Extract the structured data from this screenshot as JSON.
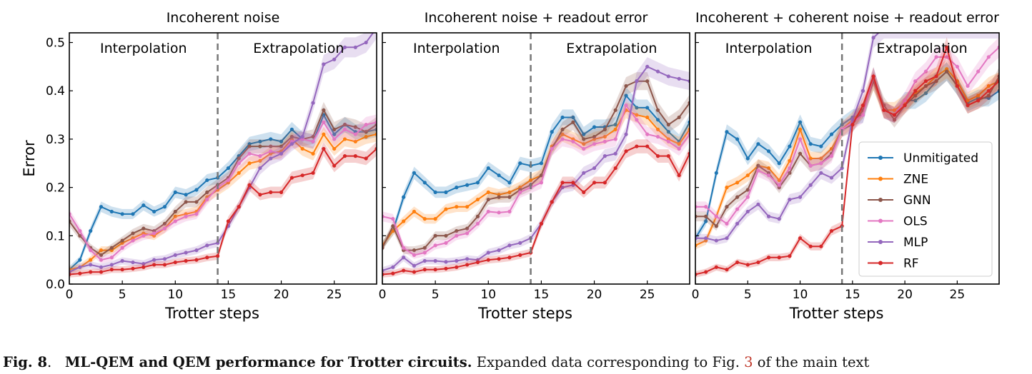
{
  "caption": {
    "fig_label": "Fig. 8",
    "title": "ML-QEM and QEM performance for Trotter circuits.",
    "text_before_ref": "Expanded data corresponding to Fig.",
    "ref": "3",
    "text_after_ref": "of the main text"
  },
  "colors": {
    "Unmitigated": "#1f77b4",
    "ZNE": "#ff7f0e",
    "GNN": "#8c564b",
    "OLS": "#e377c2",
    "MLP": "#9467bd",
    "RF": "#d62728"
  },
  "chart_data": [
    {
      "type": "line",
      "title": "Incoherent noise",
      "xlabel": "Trotter steps",
      "ylabel": "Error",
      "xlim": [
        0,
        29
      ],
      "ylim": [
        0,
        0.52
      ],
      "xticks": [
        0,
        5,
        10,
        15,
        20,
        25
      ],
      "yticks": [
        0.0,
        0.1,
        0.2,
        0.3,
        0.4,
        0.5
      ],
      "ytick_labels": [
        "0.0",
        "0.1",
        "0.2",
        "0.3",
        "0.4",
        "0.5"
      ],
      "divider_x": 14,
      "region_labels": [
        "Interpolation",
        "Extrapolation"
      ],
      "legend": false,
      "x": [
        0,
        1,
        2,
        3,
        4,
        5,
        6,
        7,
        8,
        9,
        10,
        11,
        12,
        13,
        14,
        15,
        16,
        17,
        18,
        19,
        20,
        21,
        22,
        23,
        24,
        25,
        26,
        27,
        28,
        29
      ],
      "series": [
        {
          "name": "Unmitigated",
          "values": [
            0.03,
            0.05,
            0.11,
            0.16,
            0.15,
            0.145,
            0.145,
            0.163,
            0.15,
            0.16,
            0.19,
            0.185,
            0.195,
            0.215,
            0.22,
            0.24,
            0.265,
            0.29,
            0.295,
            0.3,
            0.295,
            0.32,
            0.3,
            0.295,
            0.35,
            0.31,
            0.33,
            0.315,
            0.315,
            0.32
          ]
        },
        {
          "name": "ZNE",
          "values": [
            0.03,
            0.035,
            0.05,
            0.07,
            0.07,
            0.085,
            0.095,
            0.105,
            0.1,
            0.115,
            0.14,
            0.145,
            0.15,
            0.18,
            0.195,
            0.21,
            0.23,
            0.25,
            0.255,
            0.27,
            0.275,
            0.3,
            0.28,
            0.27,
            0.31,
            0.28,
            0.3,
            0.295,
            0.305,
            0.31
          ]
        },
        {
          "name": "GNN",
          "values": [
            0.13,
            0.1,
            0.075,
            0.06,
            0.075,
            0.09,
            0.105,
            0.115,
            0.11,
            0.125,
            0.15,
            0.17,
            0.17,
            0.19,
            0.205,
            0.22,
            0.26,
            0.285,
            0.285,
            0.285,
            0.285,
            0.305,
            0.3,
            0.305,
            0.36,
            0.32,
            0.33,
            0.325,
            0.315,
            0.33
          ]
        },
        {
          "name": "OLS",
          "values": [
            0.145,
            0.11,
            0.07,
            0.05,
            0.055,
            0.075,
            0.09,
            0.1,
            0.105,
            0.115,
            0.13,
            0.14,
            0.145,
            0.175,
            0.2,
            0.215,
            0.25,
            0.27,
            0.265,
            0.275,
            0.27,
            0.295,
            0.3,
            0.295,
            0.335,
            0.3,
            0.32,
            0.31,
            0.33,
            0.335
          ]
        },
        {
          "name": "MLP",
          "values": [
            0.025,
            0.035,
            0.04,
            0.035,
            0.04,
            0.048,
            0.045,
            0.042,
            0.05,
            0.052,
            0.06,
            0.065,
            0.07,
            0.08,
            0.085,
            0.12,
            0.16,
            0.2,
            0.24,
            0.26,
            0.27,
            0.29,
            0.305,
            0.375,
            0.455,
            0.465,
            0.49,
            0.49,
            0.5,
            0.53
          ]
        },
        {
          "name": "RF",
          "values": [
            0.02,
            0.022,
            0.025,
            0.025,
            0.03,
            0.03,
            0.032,
            0.035,
            0.04,
            0.04,
            0.045,
            0.048,
            0.05,
            0.055,
            0.058,
            0.13,
            0.16,
            0.205,
            0.185,
            0.19,
            0.19,
            0.22,
            0.225,
            0.23,
            0.28,
            0.245,
            0.265,
            0.265,
            0.26,
            0.28
          ]
        }
      ]
    },
    {
      "type": "line",
      "title": "Incoherent noise + readout error",
      "xlabel": "Trotter steps",
      "ylabel": "",
      "xlim": [
        0,
        29
      ],
      "ylim": [
        0,
        0.52
      ],
      "xticks": [
        0,
        5,
        10,
        15,
        20,
        25
      ],
      "yticks": [],
      "ytick_labels": [],
      "divider_x": 14,
      "region_labels": [
        "Interpolation",
        "Extrapolation"
      ],
      "legend": false,
      "x": [
        0,
        1,
        2,
        3,
        4,
        5,
        6,
        7,
        8,
        9,
        10,
        11,
        12,
        13,
        14,
        15,
        16,
        17,
        18,
        19,
        20,
        21,
        22,
        23,
        24,
        25,
        26,
        27,
        28,
        29
      ],
      "series": [
        {
          "name": "Unmitigated",
          "values": [
            0.08,
            0.11,
            0.18,
            0.23,
            0.21,
            0.19,
            0.19,
            0.2,
            0.205,
            0.21,
            0.24,
            0.225,
            0.21,
            0.25,
            0.245,
            0.25,
            0.315,
            0.345,
            0.345,
            0.31,
            0.325,
            0.325,
            0.33,
            0.39,
            0.365,
            0.365,
            0.34,
            0.315,
            0.295,
            0.335
          ]
        },
        {
          "name": "ZNE",
          "values": [
            0.08,
            0.11,
            0.13,
            0.15,
            0.135,
            0.135,
            0.155,
            0.16,
            0.16,
            0.175,
            0.19,
            0.185,
            0.19,
            0.2,
            0.215,
            0.225,
            0.285,
            0.31,
            0.3,
            0.29,
            0.3,
            0.305,
            0.32,
            0.36,
            0.35,
            0.345,
            0.32,
            0.3,
            0.29,
            0.32
          ]
        },
        {
          "name": "GNN",
          "values": [
            0.075,
            0.12,
            0.07,
            0.07,
            0.075,
            0.1,
            0.1,
            0.11,
            0.115,
            0.14,
            0.175,
            0.18,
            0.18,
            0.195,
            0.205,
            0.225,
            0.28,
            0.32,
            0.335,
            0.3,
            0.305,
            0.32,
            0.36,
            0.41,
            0.42,
            0.42,
            0.36,
            0.33,
            0.345,
            0.375
          ]
        },
        {
          "name": "OLS",
          "values": [
            0.14,
            0.135,
            0.075,
            0.06,
            0.065,
            0.08,
            0.085,
            0.1,
            0.105,
            0.125,
            0.15,
            0.148,
            0.15,
            0.19,
            0.2,
            0.21,
            0.28,
            0.3,
            0.295,
            0.28,
            0.29,
            0.295,
            0.3,
            0.37,
            0.34,
            0.31,
            0.305,
            0.295,
            0.28,
            0.31
          ]
        },
        {
          "name": "MLP",
          "values": [
            0.028,
            0.035,
            0.055,
            0.038,
            0.048,
            0.048,
            0.046,
            0.048,
            0.052,
            0.05,
            0.065,
            0.07,
            0.08,
            0.085,
            0.095,
            0.125,
            0.17,
            0.2,
            0.205,
            0.23,
            0.24,
            0.265,
            0.27,
            0.31,
            0.42,
            0.45,
            0.44,
            0.43,
            0.425,
            0.42
          ]
        },
        {
          "name": "RF",
          "values": [
            0.02,
            0.022,
            0.028,
            0.025,
            0.03,
            0.03,
            0.032,
            0.035,
            0.04,
            0.045,
            0.05,
            0.052,
            0.055,
            0.06,
            0.065,
            0.125,
            0.17,
            0.21,
            0.21,
            0.19,
            0.21,
            0.21,
            0.24,
            0.275,
            0.285,
            0.285,
            0.265,
            0.265,
            0.225,
            0.27
          ]
        }
      ]
    },
    {
      "type": "line",
      "title": "Incoherent + coherent noise + readout error",
      "xlabel": "Trotter steps",
      "ylabel": "",
      "xlim": [
        0,
        29
      ],
      "ylim": [
        0,
        0.52
      ],
      "xticks": [
        0,
        5,
        10,
        15,
        20,
        25
      ],
      "yticks": [],
      "ytick_labels": [],
      "divider_x": 14,
      "region_labels": [
        "Interpolation",
        "Extrapolation"
      ],
      "legend": true,
      "legend_location": "center-right",
      "x": [
        0,
        1,
        2,
        3,
        4,
        5,
        6,
        7,
        8,
        9,
        10,
        11,
        12,
        13,
        14,
        15,
        16,
        17,
        18,
        19,
        20,
        21,
        22,
        23,
        24,
        25,
        26,
        27,
        28,
        29
      ],
      "series": [
        {
          "name": "Unmitigated",
          "values": [
            0.095,
            0.13,
            0.23,
            0.315,
            0.3,
            0.26,
            0.29,
            0.275,
            0.25,
            0.285,
            0.335,
            0.29,
            0.285,
            0.31,
            0.33,
            0.345,
            0.35,
            0.43,
            0.36,
            0.35,
            0.38,
            0.38,
            0.395,
            0.42,
            0.44,
            0.41,
            0.375,
            0.385,
            0.385,
            0.4
          ]
        },
        {
          "name": "ZNE",
          "values": [
            0.08,
            0.09,
            0.14,
            0.2,
            0.21,
            0.225,
            0.245,
            0.24,
            0.215,
            0.255,
            0.32,
            0.26,
            0.26,
            0.28,
            0.32,
            0.34,
            0.36,
            0.42,
            0.36,
            0.36,
            0.375,
            0.395,
            0.41,
            0.43,
            0.445,
            0.42,
            0.38,
            0.39,
            0.41,
            0.42
          ]
        },
        {
          "name": "GNN",
          "values": [
            0.14,
            0.14,
            0.12,
            0.16,
            0.18,
            0.195,
            0.245,
            0.23,
            0.2,
            0.23,
            0.27,
            0.245,
            0.25,
            0.27,
            0.32,
            0.33,
            0.36,
            0.42,
            0.37,
            0.34,
            0.37,
            0.39,
            0.41,
            0.42,
            0.44,
            0.41,
            0.37,
            0.38,
            0.39,
            0.43
          ]
        },
        {
          "name": "OLS",
          "values": [
            0.16,
            0.16,
            0.14,
            0.125,
            0.155,
            0.18,
            0.235,
            0.225,
            0.205,
            0.24,
            0.3,
            0.245,
            0.25,
            0.265,
            0.32,
            0.335,
            0.35,
            0.43,
            0.36,
            0.35,
            0.38,
            0.42,
            0.44,
            0.47,
            0.47,
            0.45,
            0.41,
            0.44,
            0.47,
            0.49
          ]
        },
        {
          "name": "MLP",
          "values": [
            0.095,
            0.095,
            0.09,
            0.095,
            0.125,
            0.15,
            0.165,
            0.14,
            0.135,
            0.175,
            0.18,
            0.205,
            0.23,
            0.22,
            0.24,
            0.34,
            0.4,
            0.51,
            0.53,
            0.53,
            0.53,
            0.53,
            0.53,
            0.53,
            0.53,
            0.53,
            0.53,
            0.53,
            0.53,
            0.53
          ]
        },
        {
          "name": "RF",
          "values": [
            0.02,
            0.025,
            0.035,
            0.03,
            0.045,
            0.04,
            0.045,
            0.055,
            0.055,
            0.058,
            0.095,
            0.078,
            0.078,
            0.11,
            0.12,
            0.33,
            0.37,
            0.43,
            0.36,
            0.35,
            0.37,
            0.4,
            0.42,
            0.43,
            0.49,
            0.41,
            0.37,
            0.38,
            0.4,
            0.42
          ]
        }
      ]
    }
  ]
}
